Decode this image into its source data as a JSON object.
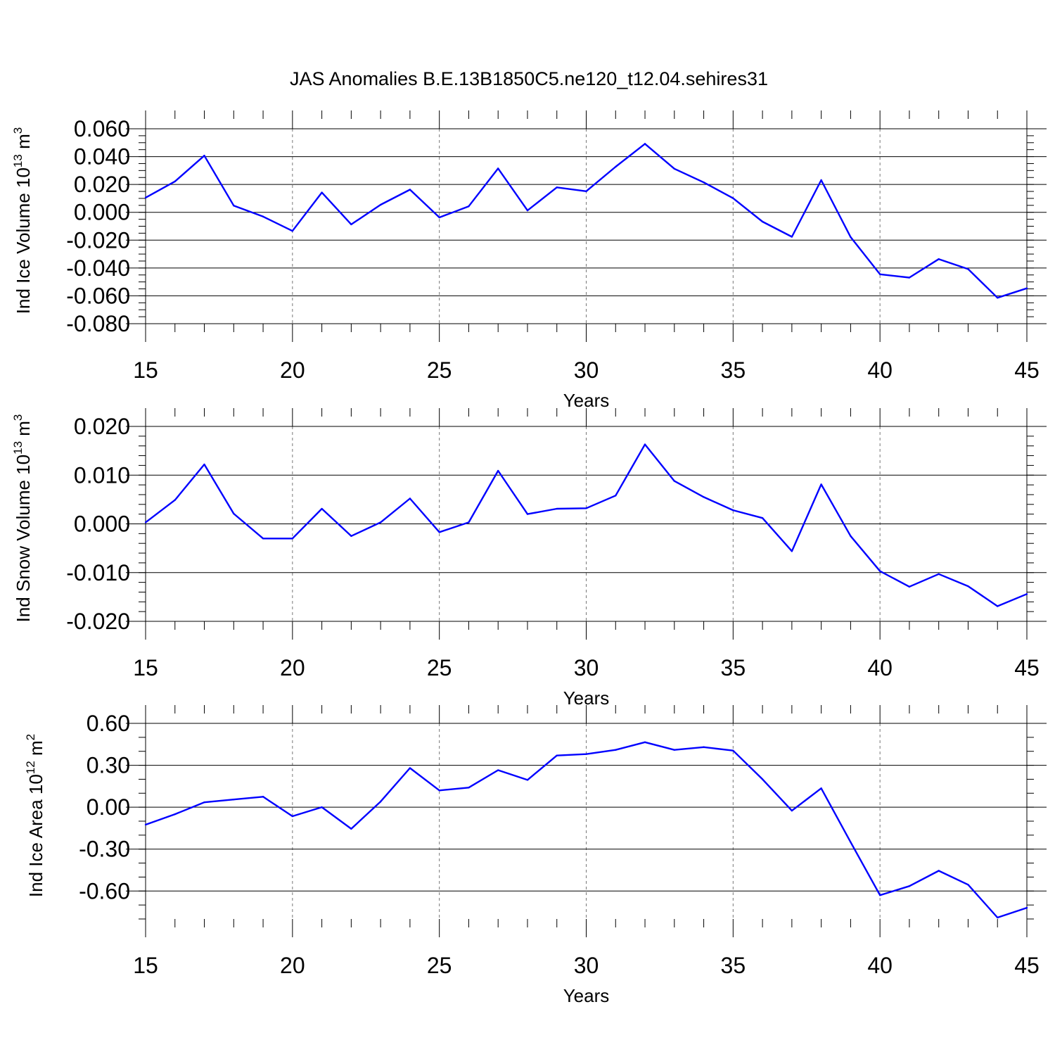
{
  "figure_title": "JAS Anomalies B.E.13B1850C5.ne120_t12.04.sehires31",
  "line_color": "#0000ff",
  "chart_data": [
    {
      "type": "line",
      "ylabel": {
        "base": "Ind Ice Volume 10",
        "exp": "13",
        "unit": " m",
        "unit_exp": "3"
      },
      "xlabel": "Years",
      "xlim": [
        15,
        45
      ],
      "ylim": [
        -0.08,
        0.06
      ],
      "x_ticks": [
        "15",
        "20",
        "25",
        "30",
        "35",
        "40",
        "45"
      ],
      "y_ticks": [
        {
          "value": 0.06,
          "label": "0.060"
        },
        {
          "value": 0.04,
          "label": "0.040"
        },
        {
          "value": 0.02,
          "label": "0.020"
        },
        {
          "value": 0.0,
          "label": "0.000"
        },
        {
          "value": -0.02,
          "label": "-0.020"
        },
        {
          "value": -0.04,
          "label": "-0.040"
        },
        {
          "value": -0.06,
          "label": "-0.060"
        },
        {
          "value": -0.08,
          "label": "-0.080"
        }
      ],
      "y_minor_step": 0.005,
      "vertical_dashed_grid_at": [
        20,
        25,
        30,
        35,
        40
      ],
      "x": [
        15,
        16,
        17,
        18,
        19,
        20,
        21,
        22,
        23,
        24,
        25,
        26,
        27,
        28,
        29,
        30,
        31,
        32,
        33,
        34,
        35,
        36,
        37,
        38,
        39,
        40,
        41,
        42,
        43,
        44,
        45
      ],
      "values": [
        0.0105,
        0.0222,
        0.0407,
        0.0048,
        -0.0031,
        -0.0134,
        0.0142,
        -0.0087,
        0.0054,
        0.0163,
        -0.0037,
        0.0043,
        0.0315,
        0.0013,
        0.0179,
        0.0151,
        0.0327,
        0.0492,
        0.0313,
        0.0215,
        0.0101,
        -0.0067,
        -0.0176,
        0.0231,
        -0.0178,
        -0.0445,
        -0.0469,
        -0.0336,
        -0.0408,
        -0.0614,
        -0.0546
      ]
    },
    {
      "type": "line",
      "ylabel": {
        "base": "Ind Snow Volume 10",
        "exp": "13",
        "unit": " m",
        "unit_exp": "3"
      },
      "xlabel": "Years",
      "xlim": [
        15,
        45
      ],
      "ylim": [
        -0.02,
        0.02
      ],
      "x_ticks": [
        "15",
        "20",
        "25",
        "30",
        "35",
        "40",
        "45"
      ],
      "y_ticks": [
        {
          "value": 0.02,
          "label": "0.020"
        },
        {
          "value": 0.01,
          "label": "0.010"
        },
        {
          "value": 0.0,
          "label": "0.000"
        },
        {
          "value": -0.01,
          "label": "-0.010"
        },
        {
          "value": -0.02,
          "label": "-0.020"
        }
      ],
      "y_minor_step": 0.002,
      "vertical_dashed_grid_at": [
        20,
        25,
        30,
        35,
        40
      ],
      "x": [
        15,
        16,
        17,
        18,
        19,
        20,
        21,
        22,
        23,
        24,
        25,
        26,
        27,
        28,
        29,
        30,
        31,
        32,
        33,
        34,
        35,
        36,
        37,
        38,
        39,
        40,
        41,
        42,
        43,
        44,
        45
      ],
      "values": [
        0.0003,
        0.0049,
        0.0122,
        0.0021,
        -0.003,
        -0.003,
        0.0031,
        -0.0025,
        0.0003,
        0.0052,
        -0.0017,
        0.0003,
        0.0109,
        0.002,
        0.0031,
        0.0032,
        0.0058,
        0.0163,
        0.0088,
        0.0055,
        0.0028,
        0.0012,
        -0.0056,
        0.0081,
        -0.0025,
        -0.0097,
        -0.0129,
        -0.0103,
        -0.0128,
        -0.0169,
        -0.0144
      ]
    },
    {
      "type": "line",
      "ylabel": {
        "base": "Ind Ice Area 10",
        "exp": "12",
        "unit": " m",
        "unit_exp": "2"
      },
      "xlabel": "Years",
      "xlim": [
        15,
        45
      ],
      "ylim": [
        -0.8,
        0.6
      ],
      "x_ticks": [
        "15",
        "20",
        "25",
        "30",
        "35",
        "40",
        "45"
      ],
      "y_ticks": [
        {
          "value": 0.6,
          "label": "0.60"
        },
        {
          "value": 0.3,
          "label": "0.30"
        },
        {
          "value": 0.0,
          "label": "0.00"
        },
        {
          "value": -0.3,
          "label": "-0.30"
        },
        {
          "value": -0.6,
          "label": "-0.60"
        }
      ],
      "y_minor_step": 0.1,
      "vertical_dashed_grid_at": [
        20,
        25,
        30,
        35,
        40
      ],
      "x": [
        15,
        16,
        17,
        18,
        19,
        20,
        21,
        22,
        23,
        24,
        25,
        26,
        27,
        28,
        29,
        30,
        31,
        32,
        33,
        34,
        35,
        36,
        37,
        38,
        39,
        40,
        41,
        42,
        43,
        44,
        45
      ],
      "values": [
        -0.125,
        -0.05,
        0.035,
        0.055,
        0.075,
        -0.065,
        0.0,
        -0.155,
        0.04,
        0.28,
        0.12,
        0.14,
        0.265,
        0.195,
        0.37,
        0.38,
        0.41,
        0.465,
        0.41,
        0.43,
        0.405,
        0.2,
        -0.025,
        0.135,
        -0.25,
        -0.63,
        -0.565,
        -0.455,
        -0.555,
        -0.79,
        -0.72
      ]
    }
  ]
}
